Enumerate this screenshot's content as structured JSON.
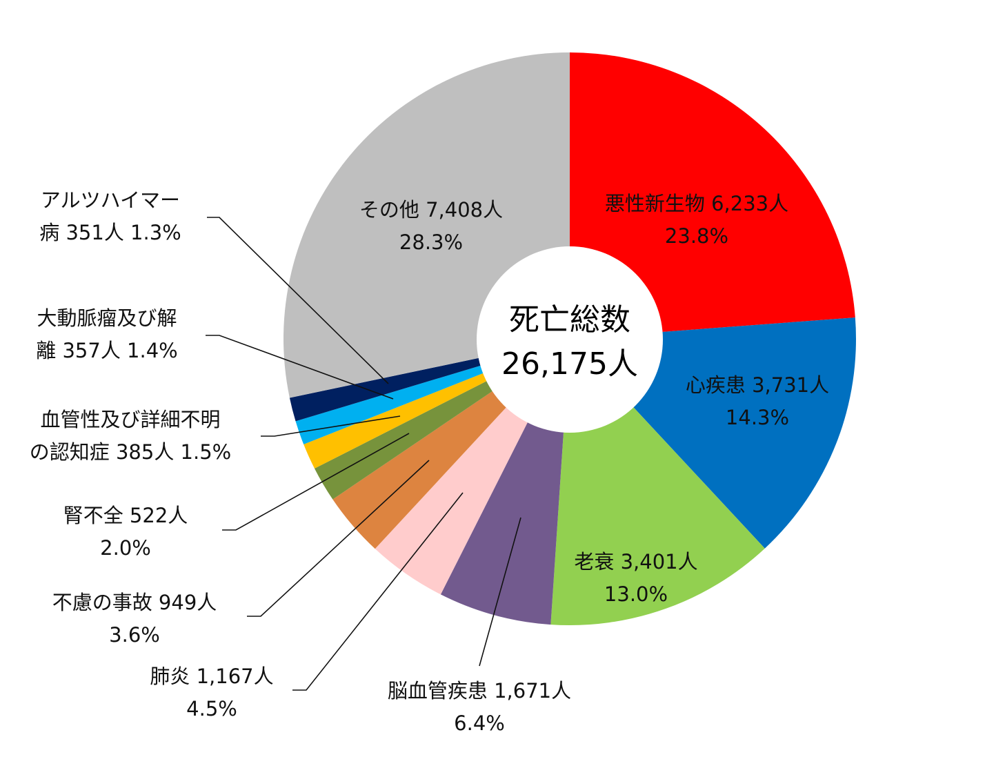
{
  "chart_data": {
    "type": "pie",
    "donut": true,
    "center_label": [
      "死亡総数",
      "26,175人"
    ],
    "categories": [
      "悪性新生物",
      "心疾患",
      "老衰",
      "脳血管疾患",
      "肺炎",
      "不慮の事故",
      "腎不全",
      "血管性及び詳細不明の認知症",
      "大動脈瘤及び解離",
      "アルツハイマー病",
      "その他"
    ],
    "values": [
      6233,
      3731,
      3401,
      1671,
      1167,
      949,
      522,
      385,
      357,
      351,
      7408
    ],
    "percents": [
      23.8,
      14.3,
      13.0,
      6.4,
      4.5,
      3.6,
      2.0,
      1.5,
      1.4,
      1.3,
      28.3
    ],
    "colors": [
      "#FF0000",
      "#0070C0",
      "#92D050",
      "#725A8E",
      "#FFCCCC",
      "#DD8440",
      "#77933C",
      "#FFC000",
      "#00B0F0",
      "#002060",
      "#BFBFBF"
    ],
    "labels": [
      {
        "lines": [
          "悪性新生物 6,233人",
          "23.8%"
        ],
        "color": "#1a1a1a"
      },
      {
        "lines": [
          "心疾患 3,731人",
          "14.3%"
        ],
        "color": "#1a1a1a"
      },
      {
        "lines": [
          "老衰 3,401人",
          "13.0%"
        ],
        "color": "#1a1a1a"
      },
      {
        "lines": [
          "脳血管疾患 1,671人",
          "6.4%"
        ],
        "color": "#1a1a1a"
      },
      {
        "lines": [
          "肺炎 1,167人",
          "4.5%"
        ],
        "color": "#1a1a1a"
      },
      {
        "lines": [
          "不慮の事故 949人",
          "3.6%"
        ],
        "color": "#1a1a1a"
      },
      {
        "lines": [
          "腎不全 522人",
          "2.0%"
        ],
        "color": "#1a1a1a"
      },
      {
        "lines": [
          "血管性及び詳細不明",
          "の認知症 385人 1.5%"
        ],
        "color": "#1a1a1a"
      },
      {
        "lines": [
          "大動脈瘤及び解",
          "離 357人 1.4%"
        ],
        "color": "#1a1a1a"
      },
      {
        "lines": [
          "アルツハイマー",
          "病 351人 1.3%"
        ],
        "color": "#1a1a1a"
      },
      {
        "lines": [
          "その他 7,408人",
          "28.3%"
        ],
        "color": "#1a1a1a"
      }
    ],
    "legend": "none"
  }
}
